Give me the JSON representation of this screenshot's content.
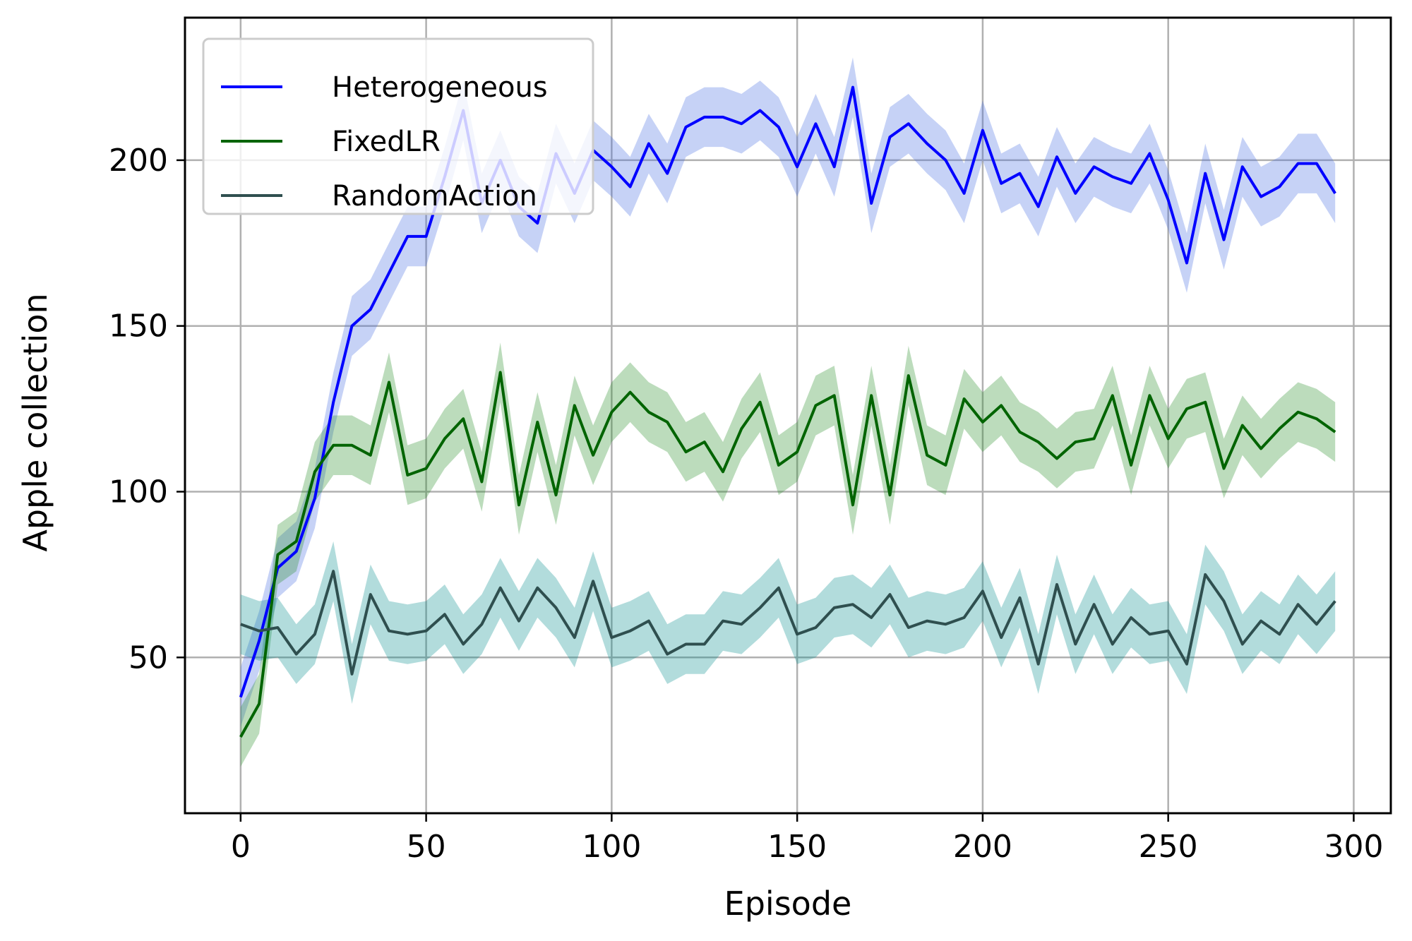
{
  "chart_data": {
    "type": "line",
    "title": "",
    "xlabel": "Episode",
    "ylabel": "Apple collection",
    "xlim": [
      -15,
      310
    ],
    "ylim": [
      3,
      243
    ],
    "xticks": [
      0,
      50,
      100,
      150,
      200,
      250,
      300
    ],
    "yticks": [
      50,
      100,
      150,
      200
    ],
    "grid": true,
    "legend_position": "top-left",
    "x": [
      0,
      5,
      10,
      15,
      20,
      25,
      30,
      35,
      40,
      45,
      50,
      55,
      60,
      65,
      70,
      75,
      80,
      85,
      90,
      95,
      100,
      105,
      110,
      115,
      120,
      125,
      130,
      135,
      140,
      145,
      150,
      155,
      160,
      165,
      170,
      175,
      180,
      185,
      190,
      195,
      200,
      205,
      210,
      215,
      220,
      225,
      230,
      235,
      240,
      245,
      250,
      255,
      260,
      265,
      270,
      275,
      280,
      285,
      290,
      295
    ],
    "series": [
      {
        "name": "Heterogeneous",
        "color": "#0000ff",
        "band_color": "#4169e1",
        "band": 9,
        "values": [
          38,
          55,
          77,
          82,
          98,
          127,
          150,
          155,
          166,
          177,
          177,
          195,
          215,
          187,
          200,
          186,
          181,
          202,
          190,
          203,
          198,
          192,
          205,
          196,
          210,
          213,
          213,
          211,
          215,
          210,
          198,
          211,
          198,
          222,
          187,
          207,
          211,
          205,
          200,
          190,
          209,
          193,
          196,
          186,
          201,
          190,
          198,
          195,
          193,
          202,
          188,
          169,
          196,
          176,
          198,
          189,
          192,
          199,
          199,
          190
        ]
      },
      {
        "name": "FixedLR",
        "color": "#006400",
        "band_color": "#228b22",
        "band": 9,
        "values": [
          26,
          36,
          81,
          85,
          106,
          114,
          114,
          111,
          133,
          105,
          107,
          116,
          122,
          103,
          136,
          96,
          121,
          99,
          126,
          111,
          124,
          130,
          124,
          121,
          112,
          115,
          106,
          119,
          127,
          108,
          112,
          126,
          129,
          96,
          129,
          99,
          135,
          111,
          108,
          128,
          121,
          126,
          118,
          115,
          110,
          115,
          116,
          129,
          108,
          129,
          116,
          125,
          127,
          107,
          120,
          113,
          119,
          124,
          122,
          118
        ]
      },
      {
        "name": "RandomAction",
        "color": "#2f4f4f",
        "band_color": "#008b8b",
        "band": 9,
        "values": [
          60,
          58,
          59,
          51,
          57,
          76,
          45,
          69,
          58,
          57,
          58,
          63,
          54,
          60,
          71,
          61,
          71,
          65,
          56,
          73,
          56,
          58,
          61,
          51,
          54,
          54,
          61,
          60,
          65,
          71,
          57,
          59,
          65,
          66,
          62,
          69,
          59,
          61,
          60,
          62,
          70,
          56,
          68,
          48,
          72,
          54,
          66,
          54,
          62,
          57,
          58,
          48,
          75,
          67,
          54,
          61,
          57,
          66,
          60,
          67
        ]
      }
    ]
  }
}
